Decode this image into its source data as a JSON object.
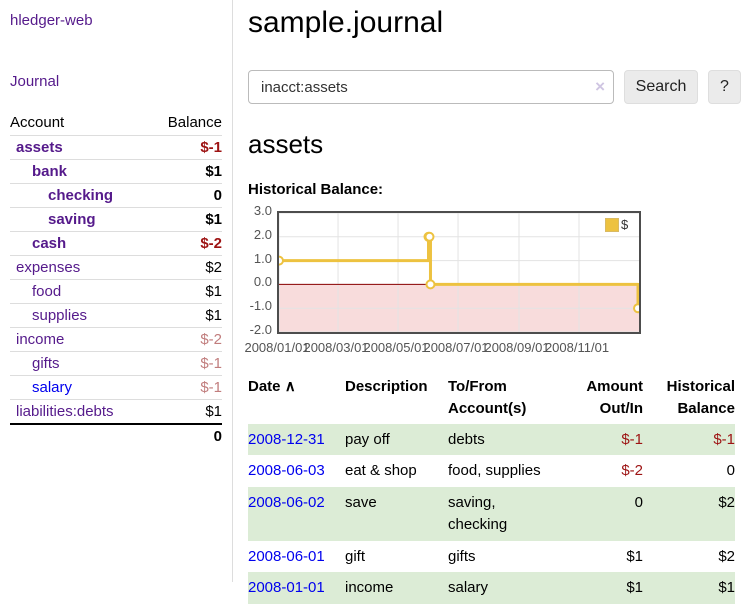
{
  "app": {
    "title": "hledger-web"
  },
  "colors": {
    "link_purple": "#551a8b",
    "link_blue": "#0000ee",
    "negative_strong": "#9d1313",
    "negative_soft": "#c17d7d",
    "row_green": "#dcecd6",
    "accent_gold": "#edc240"
  },
  "sidebar": {
    "journal_label": "Journal",
    "accounts_table": {
      "account_header": "Account",
      "balance_header": "Balance",
      "rows": [
        {
          "name": "assets",
          "indent": 1,
          "bold": true,
          "link": "purple",
          "balance": "$-1",
          "balance_class": "neg"
        },
        {
          "name": "bank",
          "indent": 2,
          "bold": true,
          "link": "purple",
          "balance": "$1",
          "balance_class": ""
        },
        {
          "name": "checking",
          "indent": 3,
          "bold": true,
          "link": "purple",
          "balance": "0",
          "balance_class": ""
        },
        {
          "name": "saving",
          "indent": 3,
          "bold": true,
          "link": "purple",
          "balance": "$1",
          "balance_class": ""
        },
        {
          "name": "cash",
          "indent": 2,
          "bold": true,
          "link": "purple",
          "balance": "$-2",
          "balance_class": "neg"
        },
        {
          "name": "expenses",
          "indent": 1,
          "bold": false,
          "link": "purple",
          "balance": "$2",
          "balance_class": ""
        },
        {
          "name": "food",
          "indent": 2,
          "bold": false,
          "link": "purple",
          "balance": "$1",
          "balance_class": ""
        },
        {
          "name": "supplies",
          "indent": 2,
          "bold": false,
          "link": "purple",
          "balance": "$1",
          "balance_class": ""
        },
        {
          "name": "income",
          "indent": 1,
          "bold": false,
          "link": "purple",
          "balance": "$-2",
          "balance_class": "soft"
        },
        {
          "name": "gifts",
          "indent": 2,
          "bold": false,
          "link": "purple",
          "balance": "$-1",
          "balance_class": "soft"
        },
        {
          "name": "salary",
          "indent": 2,
          "bold": false,
          "link": "blue",
          "balance": "$-1",
          "balance_class": "soft"
        },
        {
          "name": "liabilities:debts",
          "indent": 1,
          "bold": false,
          "link": "purple",
          "balance": "$1",
          "balance_class": ""
        }
      ],
      "total": "0"
    }
  },
  "main": {
    "title": "sample.journal",
    "search": {
      "value": "inacct:assets",
      "clear_icon": "×",
      "search_label": "Search",
      "help_label": "?"
    },
    "account_heading": "assets",
    "chart_label": "Historical Balance:",
    "register": {
      "headers": {
        "date": "Date",
        "sort_icon": "∧",
        "description": "Description",
        "tofrom": "To/From Account(s)",
        "amount": "Amount Out/In",
        "balance": "Historical Balance"
      },
      "rows": [
        {
          "date": "2008-12-31",
          "description": "pay off",
          "accounts": "debts",
          "amount": "$-1",
          "amount_class": "neg",
          "balance": "$-1",
          "balance_class": "neg"
        },
        {
          "date": "2008-06-03",
          "description": "eat & shop",
          "accounts": "food, supplies",
          "amount": "$-2",
          "amount_class": "neg",
          "balance": "0",
          "balance_class": ""
        },
        {
          "date": "2008-06-02",
          "description": "save",
          "accounts": "saving, checking",
          "amount": "0",
          "amount_class": "",
          "balance": "$2",
          "balance_class": ""
        },
        {
          "date": "2008-06-01",
          "description": "gift",
          "accounts": "gifts",
          "amount": "$1",
          "amount_class": "",
          "balance": "$2",
          "balance_class": ""
        },
        {
          "date": "2008-01-01",
          "description": "income",
          "accounts": "salary",
          "amount": "$1",
          "amount_class": "",
          "balance": "$1",
          "balance_class": ""
        }
      ]
    }
  },
  "chart_data": {
    "type": "line",
    "step": true,
    "title": "Historical Balance",
    "legend": [
      {
        "label": "$",
        "color": "#edc240"
      }
    ],
    "x_start": "2008-01-01",
    "x_end": "2009-01-01",
    "points": [
      {
        "date": "2008-01-01",
        "value": 1
      },
      {
        "date": "2008-06-01",
        "value": 2
      },
      {
        "date": "2008-06-02",
        "value": 2
      },
      {
        "date": "2008-06-03",
        "value": 0
      },
      {
        "date": "2008-12-31",
        "value": -1
      }
    ],
    "ylim": [
      -2,
      3
    ],
    "yticks": [
      {
        "value": 3,
        "label": "3.0"
      },
      {
        "value": 2,
        "label": "2.0"
      },
      {
        "value": 1,
        "label": "1.0"
      },
      {
        "value": 0,
        "label": "0.0"
      },
      {
        "value": -1,
        "label": "-1.0"
      },
      {
        "value": -2,
        "label": "-2.0"
      }
    ],
    "xticks": [
      {
        "date": "2008-01-01",
        "label": "2008/01/01"
      },
      {
        "date": "2008-03-01",
        "label": "2008/03/01"
      },
      {
        "date": "2008-05-01",
        "label": "2008/05/01"
      },
      {
        "date": "2008-07-01",
        "label": "2008/07/01"
      },
      {
        "date": "2008-09-01",
        "label": "2008/09/01"
      },
      {
        "date": "2008-11-01",
        "label": "2008/11/01"
      }
    ],
    "grid": true,
    "legend_position": "top-right",
    "colors": {
      "line": "#edc240",
      "marker_fill": "#ffffff",
      "below_zero_fill": "#f8dcdc",
      "zero_line": "#8b0000",
      "grid": "#e3e3e3",
      "border": "#4d4d4d",
      "tick_text": "#545454"
    }
  }
}
